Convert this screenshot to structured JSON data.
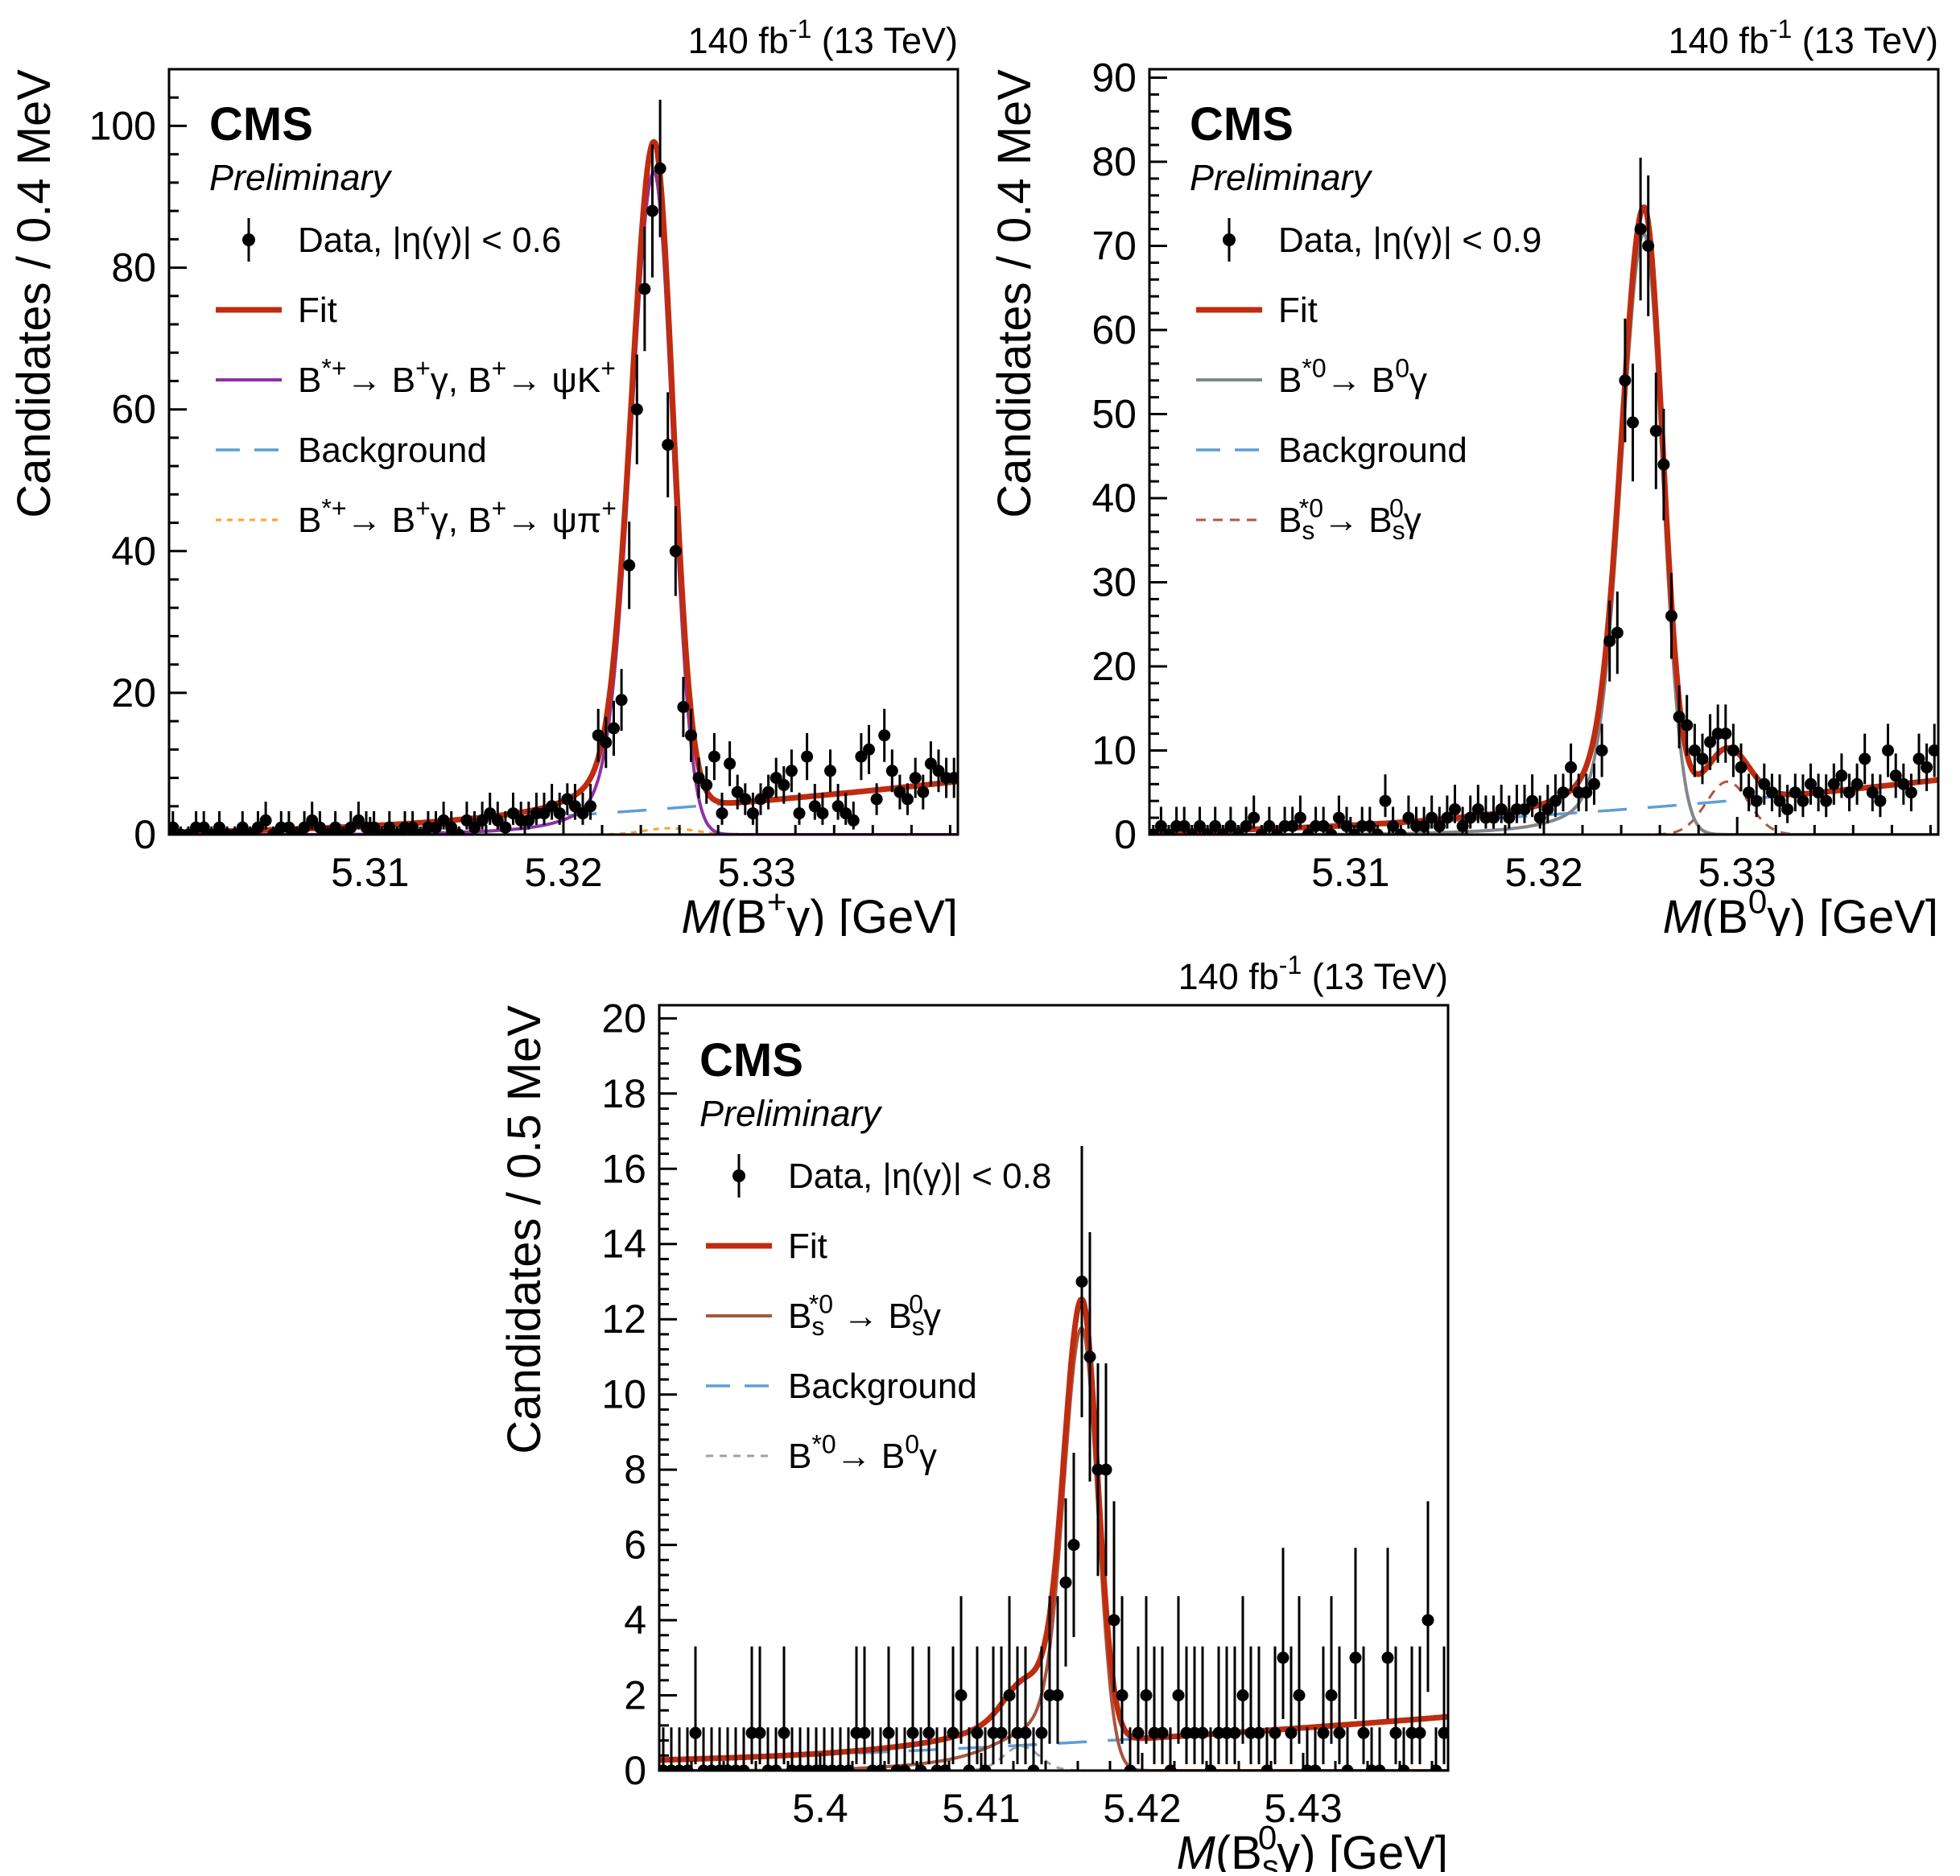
{
  "page": {
    "background": "#ffffff",
    "text_color": "#000000"
  },
  "chart_data": [
    {
      "id": "b-plus-gamma",
      "type": "scatter",
      "title": "CMS Preliminary",
      "header": {
        "cms": "CMS",
        "preliminary": "Preliminary",
        "lumi": "140 fb^{-1} (13 TeV)"
      },
      "xlabel": "M(B^{+}γ) [GeV]",
      "ylabel": "Candidates / 0.4 MeV",
      "axes": {
        "xmin": 5.2996,
        "xmax": 5.3404,
        "ymin": 0,
        "ymax": 108,
        "x_major": [
          {
            "v": 5.31,
            "label": "5.31"
          },
          {
            "v": 5.32,
            "label": "5.32"
          },
          {
            "v": 5.33,
            "label": "5.33"
          }
        ],
        "x_minor_step": 0.002,
        "y_major_step": 20,
        "y_minor_step": 4,
        "grid": false,
        "legend_position": "top-left"
      },
      "histogram": {
        "x_start": 5.2996,
        "bin_width": 0.0004,
        "counts": [
          1,
          0,
          0,
          1,
          1,
          0,
          1,
          0,
          0,
          1,
          0,
          1,
          2,
          0,
          1,
          1,
          0,
          1,
          2,
          1,
          0,
          1,
          0,
          1,
          2,
          1,
          1,
          0,
          1,
          0,
          1,
          1,
          0,
          1,
          1,
          2,
          1,
          0,
          2,
          1,
          2,
          3,
          2,
          1,
          3,
          2,
          2,
          3,
          3,
          4,
          3,
          5,
          4,
          3,
          4,
          14,
          13,
          15,
          19,
          38,
          60,
          77,
          88,
          94,
          55,
          40,
          18,
          14,
          8,
          7,
          11,
          3,
          10,
          6,
          5,
          3,
          5,
          6,
          8,
          7,
          9,
          3,
          11,
          4,
          3,
          9,
          4,
          3,
          2,
          11,
          12,
          5,
          14,
          9,
          6,
          5,
          8,
          6,
          10,
          9,
          8,
          8
        ]
      },
      "fit": {
        "color": "#bf2c10",
        "width": 7
      },
      "signal": {
        "color": "#8d31a8",
        "width": 4,
        "dash": null,
        "gaussians": [
          {
            "mu": 5.3247,
            "sl": 0.00115,
            "sr": 0.00095,
            "a": 88
          },
          {
            "mu": 5.3242,
            "sl": 0.0024,
            "sr": 0.0012,
            "a": 5
          },
          {
            "mu": 5.3235,
            "sl": 0.0055,
            "sr": 0.0015,
            "a": 1.2
          }
        ]
      },
      "secondary": {
        "color": "#ffa128",
        "width": 3,
        "dash": "7 7",
        "gaussians": [
          {
            "mu": 5.3255,
            "sl": 0.0013,
            "sr": 0.0013,
            "a": 0.9
          }
        ]
      },
      "background": {
        "color": "#5f9ed6",
        "width": 3.5,
        "dash": "36 26",
        "poly": {
          "a": 0.3,
          "b": 2.2,
          "c": 5.0
        }
      },
      "legend": [
        {
          "type": "marker",
          "label": "Data, |η(γ)| < 0.6"
        },
        {
          "type": "line",
          "color": "#bf2c10",
          "width": 7,
          "dash": null,
          "label": "Fit"
        },
        {
          "type": "line",
          "color": "#8d31a8",
          "width": 4,
          "dash": null,
          "label": "B^{*+}→ B^{+}γ, B^{+}→ ψK^{+}"
        },
        {
          "type": "line",
          "color": "#5f9ed6",
          "width": 3.5,
          "dash": "30 18",
          "label": "Background"
        },
        {
          "type": "line",
          "color": "#ffa128",
          "width": 3,
          "dash": "7 7",
          "label": "B^{*+}→ B^{+}γ, B^{+}→ ψπ^{+}"
        }
      ]
    },
    {
      "id": "b-zero-gamma",
      "type": "scatter",
      "title": "CMS Preliminary",
      "header": {
        "cms": "CMS",
        "preliminary": "Preliminary",
        "lumi": "140 fb^{-1} (13 TeV)"
      },
      "xlabel": "M(B^{0}γ) [GeV]",
      "ylabel": "Candidates / 0.4 MeV",
      "axes": {
        "xmin": 5.2996,
        "xmax": 5.3404,
        "ymin": 0,
        "ymax": 91,
        "x_major": [
          {
            "v": 5.31,
            "label": "5.31"
          },
          {
            "v": 5.32,
            "label": "5.32"
          },
          {
            "v": 5.33,
            "label": "5.33"
          }
        ],
        "x_minor_step": 0.002,
        "y_major_step": 10,
        "y_minor_step": 2,
        "grid": false,
        "legend_position": "top-left"
      },
      "histogram": {
        "x_start": 5.2996,
        "bin_width": 0.0004,
        "counts": [
          0,
          1,
          0,
          1,
          1,
          0,
          1,
          0,
          1,
          0,
          1,
          0,
          1,
          2,
          0,
          1,
          0,
          1,
          1,
          2,
          0,
          1,
          1,
          0,
          2,
          1,
          0,
          1,
          1,
          0,
          4,
          1,
          0,
          2,
          1,
          1,
          2,
          1,
          2,
          3,
          1,
          2,
          3,
          2,
          2,
          3,
          2,
          3,
          3,
          4,
          2,
          3,
          4,
          5,
          8,
          5,
          5,
          6,
          10,
          23,
          24,
          54,
          49,
          72,
          70,
          48,
          44,
          26,
          14,
          13,
          10,
          9,
          11,
          12,
          12,
          10,
          8,
          5,
          4,
          6,
          5,
          4,
          3,
          5,
          4,
          6,
          5,
          4,
          6,
          7,
          5,
          6,
          9,
          5,
          4,
          10,
          7,
          6,
          5,
          9,
          8,
          10
        ]
      },
      "fit": {
        "color": "#bf2c10",
        "width": 7
      },
      "signal": {
        "color": "#80868c",
        "width": 4,
        "dash": null,
        "gaussians": [
          {
            "mu": 5.3252,
            "sl": 0.00115,
            "sr": 0.00095,
            "a": 67
          },
          {
            "mu": 5.3247,
            "sl": 0.0024,
            "sr": 0.0012,
            "a": 4
          },
          {
            "mu": 5.324,
            "sl": 0.0055,
            "sr": 0.0015,
            "a": 1.0
          }
        ]
      },
      "secondary": {
        "color": "#b3543f",
        "width": 3,
        "dash": "12 9",
        "gaussians": [
          {
            "mu": 5.3295,
            "sl": 0.0011,
            "sr": 0.0011,
            "a": 6.3
          }
        ]
      },
      "background": {
        "color": "#5f9ed6",
        "width": 3.5,
        "dash": "36 26",
        "poly": {
          "a": 0.3,
          "b": 1.9,
          "c": 4.3
        }
      },
      "legend": [
        {
          "type": "marker",
          "label": "Data, |η(γ)| < 0.9"
        },
        {
          "type": "line",
          "color": "#bf2c10",
          "width": 7,
          "dash": null,
          "label": "Fit"
        },
        {
          "type": "line",
          "color": "#80868c",
          "width": 4,
          "dash": null,
          "label": "B^{*0}→ B^{0}γ"
        },
        {
          "type": "line",
          "color": "#5f9ed6",
          "width": 3.5,
          "dash": "30 18",
          "label": "Background"
        },
        {
          "type": "line",
          "color": "#b3543f",
          "width": 3,
          "dash": "12 9",
          "label": "B_{s}^{*0}→ B_{s}^{0}γ"
        }
      ]
    },
    {
      "id": "b-s-zero-gamma",
      "type": "scatter",
      "title": "CMS Preliminary",
      "header": {
        "cms": "CMS",
        "preliminary": "Preliminary",
        "lumi": "140 fb^{-1} (13 TeV)"
      },
      "xlabel": "M(B_{s}^{0}γ) [GeV]",
      "ylabel": "Candidates / 0.5 MeV",
      "axes": {
        "xmin": 5.39,
        "xmax": 5.439,
        "ymin": 0,
        "ymax": 20.35,
        "x_major": [
          {
            "v": 5.4,
            "label": "5.4"
          },
          {
            "v": 5.41,
            "label": "5.41"
          },
          {
            "v": 5.42,
            "label": "5.42"
          },
          {
            "v": 5.43,
            "label": "5.43"
          }
        ],
        "x_minor_step": 0.002,
        "y_major_step": 2,
        "y_minor_step": 0.4,
        "grid": false,
        "legend_position": "top-left"
      },
      "histogram": {
        "x_start": 5.39,
        "bin_width": 0.0005,
        "counts": [
          0,
          0,
          0,
          0,
          1,
          0,
          0,
          0,
          0,
          0,
          0,
          1,
          1,
          0,
          0,
          1,
          0,
          0,
          0,
          0,
          0,
          0,
          0,
          0,
          1,
          1,
          0,
          0,
          1,
          0,
          0,
          1,
          0,
          1,
          0,
          0,
          1,
          2,
          0,
          1,
          0,
          1,
          1,
          2,
          1,
          1,
          0,
          1,
          2,
          2,
          5,
          6,
          13,
          11,
          8,
          8,
          4,
          2,
          0,
          1,
          2,
          1,
          1,
          0,
          2,
          1,
          1,
          1,
          0,
          1,
          1,
          1,
          2,
          1,
          1,
          0,
          1,
          3,
          1,
          2,
          0,
          0,
          1,
          2,
          1,
          0,
          3,
          1,
          0,
          0,
          3,
          1,
          0,
          1,
          1,
          4,
          0,
          1
        ]
      },
      "fit": {
        "color": "#bf2c10",
        "width": 7
      },
      "signal": {
        "color": "#a8563e",
        "width": 4,
        "dash": null,
        "gaussians": [
          {
            "mu": 5.4163,
            "sl": 0.0011,
            "sr": 0.00095,
            "a": 11.3
          },
          {
            "mu": 5.415,
            "sl": 0.003,
            "sr": 0.001,
            "a": 1.0
          },
          {
            "mu": 5.4135,
            "sl": 0.006,
            "sr": 0.0012,
            "a": 0.35
          }
        ]
      },
      "secondary": {
        "color": "#9aa3ab",
        "width": 3,
        "dash": "9 8",
        "gaussians": [
          {
            "mu": 5.4125,
            "sl": 0.0011,
            "sr": 0.0011,
            "a": 0.65
          }
        ]
      },
      "background": {
        "color": "#5f9ed6",
        "width": 3.5,
        "dash": "36 26",
        "poly": {
          "a": 0.28,
          "b": 0.6,
          "c": 0.55
        }
      },
      "legend": [
        {
          "type": "marker",
          "label": "Data, |η(γ)| < 0.8"
        },
        {
          "type": "line",
          "color": "#bf2c10",
          "width": 7,
          "dash": null,
          "label": "Fit"
        },
        {
          "type": "line",
          "color": "#a8563e",
          "width": 4,
          "dash": null,
          "label": "B_{s}^{*0} → B_{s}^{0}γ"
        },
        {
          "type": "line",
          "color": "#5f9ed6",
          "width": 3.5,
          "dash": "30 18",
          "label": "Background"
        },
        {
          "type": "line",
          "color": "#9aa3ab",
          "width": 3,
          "dash": "9 8",
          "label": "B^{*0}→ B^{0}γ"
        }
      ]
    }
  ]
}
